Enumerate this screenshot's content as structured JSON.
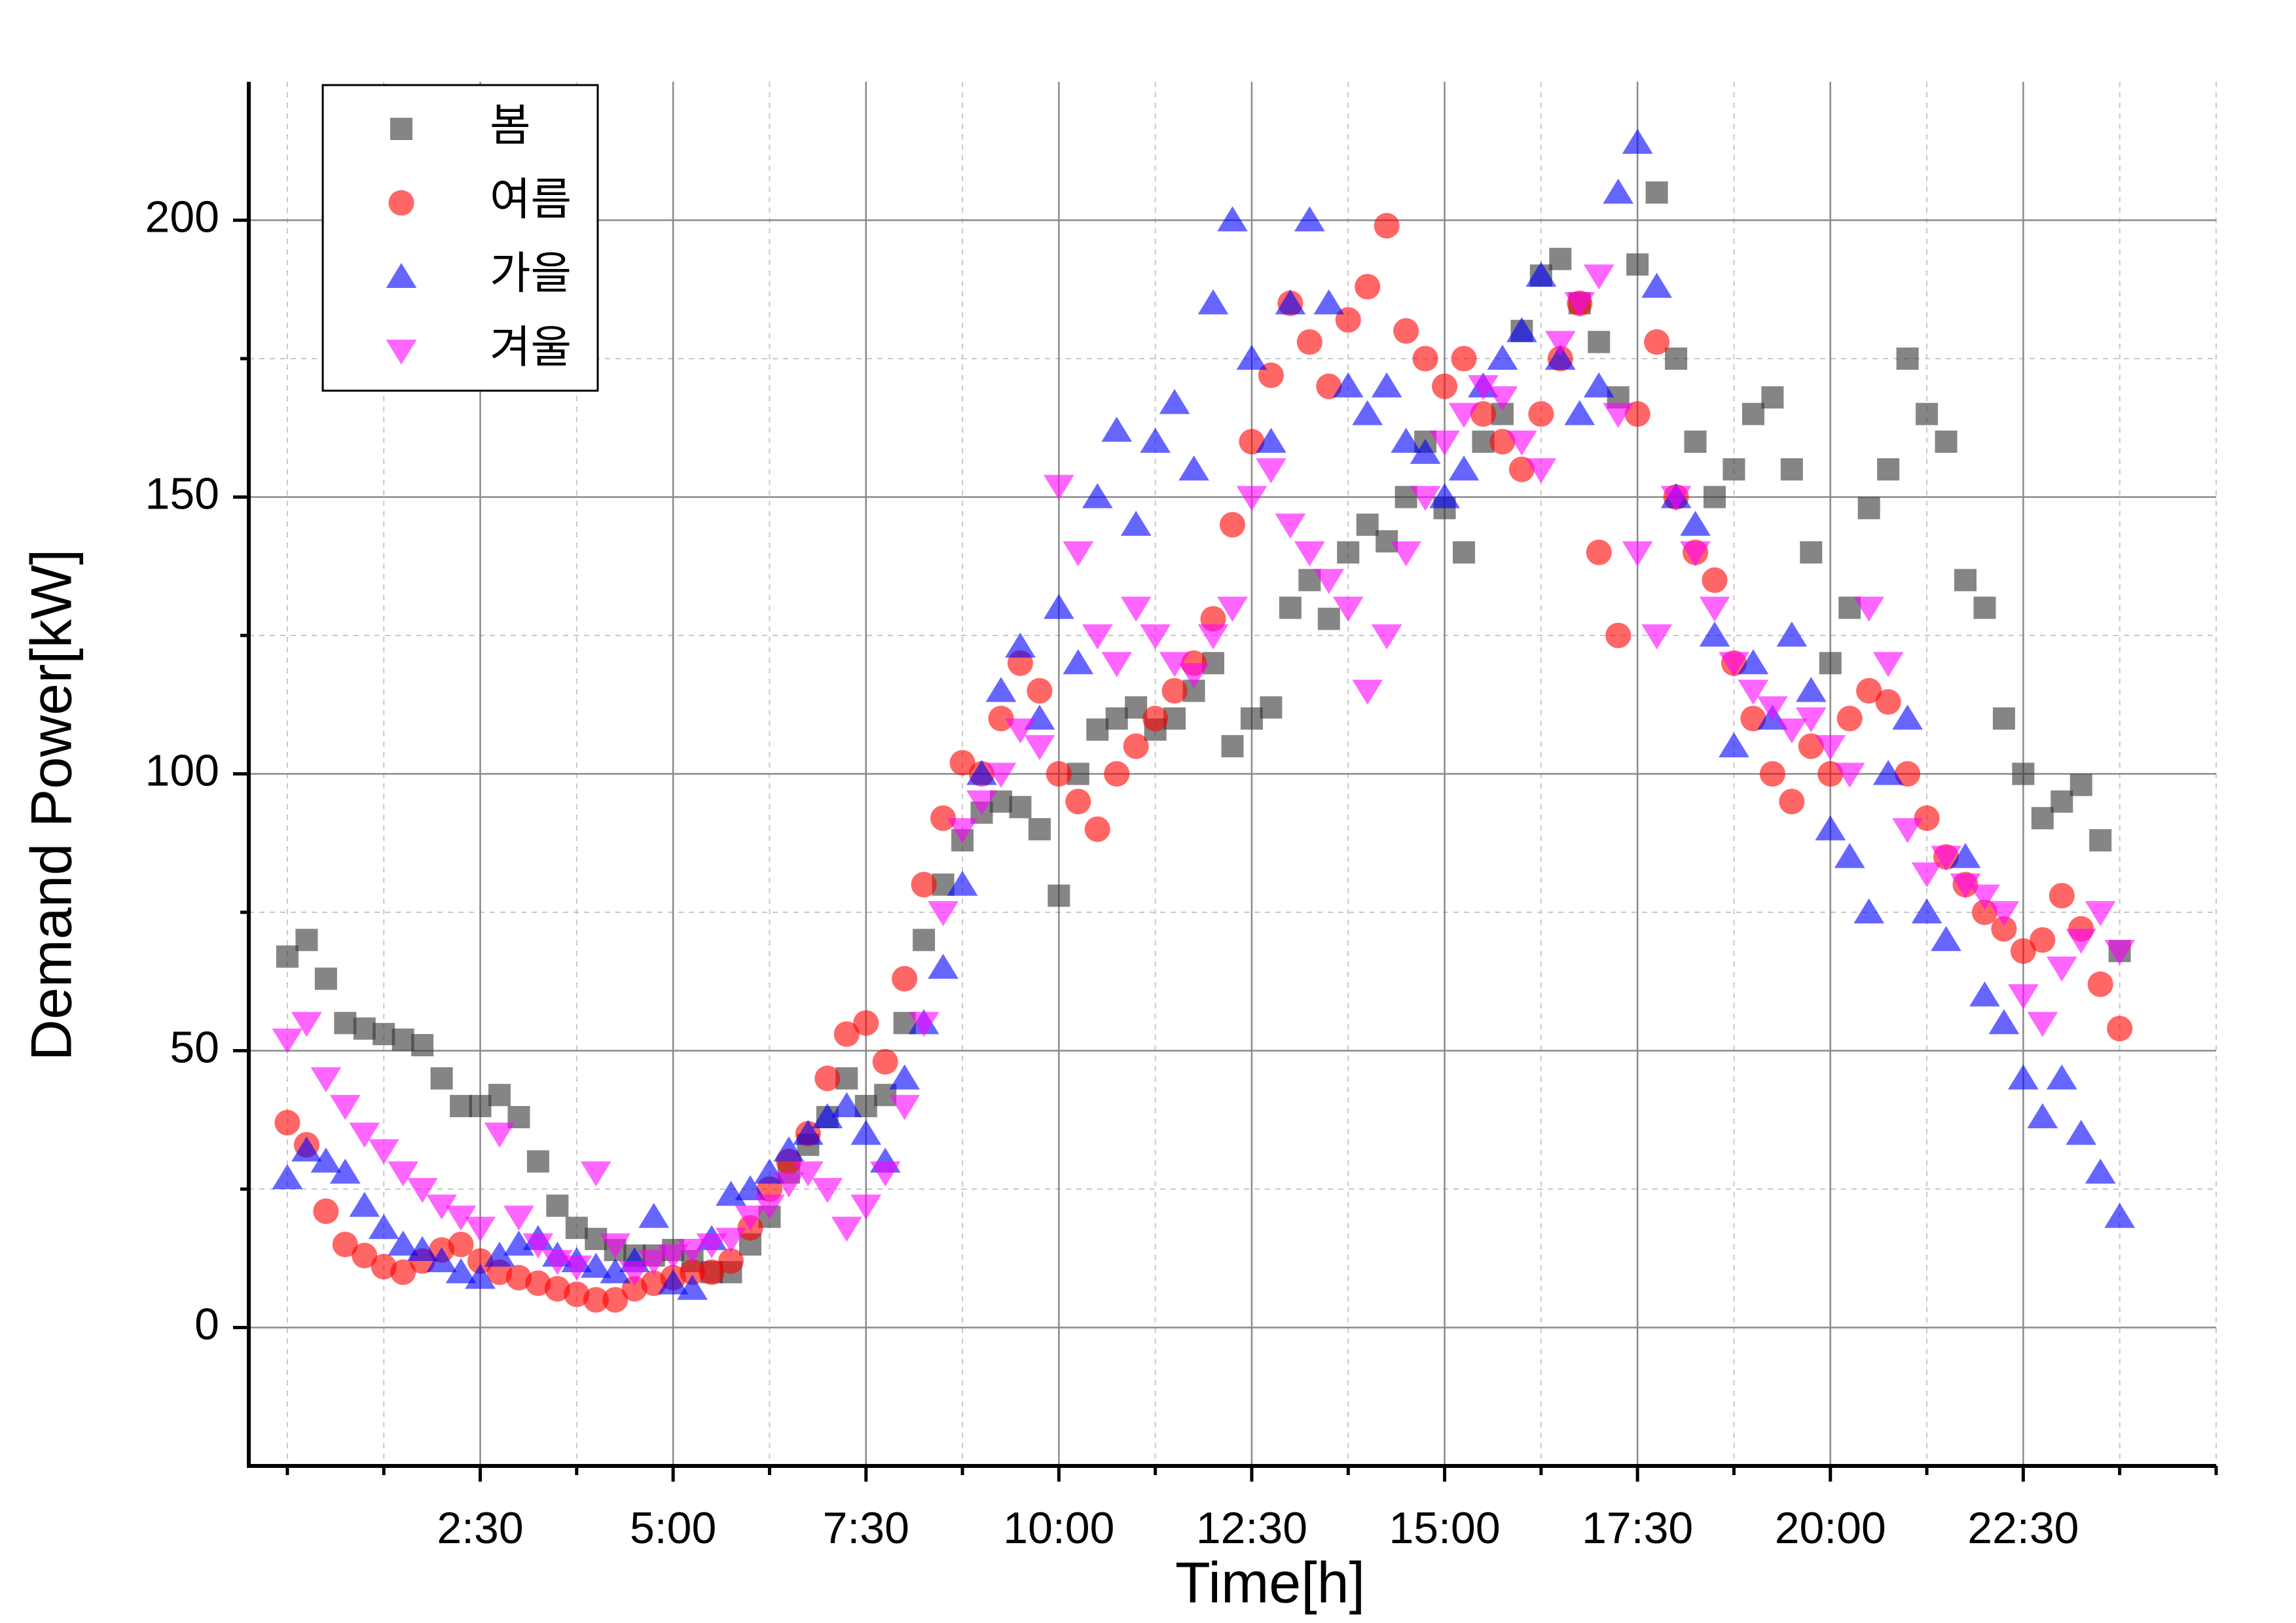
{
  "chart_data": {
    "type": "scatter",
    "xlabel": "Time[h]",
    "ylabel": "Demand Power[kW]",
    "x": [
      0,
      0.25,
      0.5,
      0.75,
      1,
      1.25,
      1.5,
      1.75,
      2,
      2.25,
      2.5,
      2.75,
      3,
      3.25,
      3.5,
      3.75,
      4,
      4.25,
      4.5,
      4.75,
      5,
      5.25,
      5.5,
      5.75,
      6,
      6.25,
      6.5,
      6.75,
      7,
      7.25,
      7.5,
      7.75,
      8,
      8.25,
      8.5,
      8.75,
      9,
      9.25,
      9.5,
      9.75,
      10,
      10.25,
      10.5,
      10.75,
      11,
      11.25,
      11.5,
      11.75,
      12,
      12.25,
      12.5,
      12.75,
      13,
      13.25,
      13.5,
      13.75,
      14,
      14.25,
      14.5,
      14.75,
      15,
      15.25,
      15.5,
      15.75,
      16,
      16.25,
      16.5,
      16.75,
      17,
      17.25,
      17.5,
      17.75,
      18,
      18.25,
      18.5,
      18.75,
      19,
      19.25,
      19.5,
      19.75,
      20,
      20.25,
      20.5,
      20.75,
      21,
      21.25,
      21.5,
      21.75,
      22,
      22.25,
      22.5,
      22.75,
      23,
      23.25,
      23.5,
      23.75
    ],
    "series": [
      {
        "name": "봄",
        "color": "#333333",
        "marker": "square",
        "values": [
          67,
          70,
          63,
          55,
          54,
          53,
          52,
          51,
          45,
          40,
          40,
          42,
          38,
          30,
          22,
          18,
          16,
          14,
          13,
          13,
          14,
          12,
          10,
          10,
          15,
          20,
          28,
          33,
          38,
          45,
          40,
          42,
          55,
          70,
          80,
          88,
          93,
          95,
          94,
          90,
          78,
          100,
          108,
          110,
          112,
          108,
          110,
          115,
          120,
          105,
          110,
          112,
          130,
          135,
          128,
          140,
          145,
          142,
          150,
          160,
          148,
          140,
          160,
          165,
          180,
          190,
          193,
          185,
          178,
          168,
          192,
          205,
          175,
          160,
          150,
          155,
          165,
          168,
          155,
          140,
          120,
          130,
          148,
          155,
          175,
          165,
          160,
          135,
          130,
          110,
          100,
          92,
          95,
          98,
          88,
          68
        ]
      },
      {
        "name": "여름",
        "color": "#ff0000",
        "marker": "circle",
        "values": [
          37,
          33,
          21,
          15,
          13,
          11,
          10,
          12,
          14,
          15,
          12,
          10,
          9,
          8,
          7,
          6,
          5,
          5,
          7,
          8,
          9,
          10,
          10,
          12,
          18,
          25,
          30,
          35,
          45,
          53,
          55,
          48,
          63,
          80,
          92,
          102,
          100,
          110,
          120,
          115,
          100,
          95,
          90,
          100,
          105,
          110,
          115,
          120,
          128,
          145,
          160,
          172,
          185,
          178,
          170,
          182,
          188,
          199,
          180,
          175,
          170,
          175,
          165,
          160,
          155,
          165,
          175,
          185,
          140,
          125,
          165,
          178,
          150,
          140,
          135,
          120,
          110,
          100,
          95,
          105,
          100,
          110,
          115,
          113,
          100,
          92,
          85,
          80,
          75,
          72,
          68,
          70,
          78,
          72,
          62,
          54
        ]
      },
      {
        "name": "가을",
        "color": "#0000ff",
        "marker": "triangle-up",
        "values": [
          27,
          32,
          30,
          28,
          22,
          18,
          15,
          14,
          12,
          10,
          9,
          13,
          15,
          16,
          13,
          12,
          11,
          10,
          12,
          20,
          8,
          7,
          16,
          24,
          25,
          28,
          32,
          35,
          38,
          40,
          35,
          30,
          45,
          55,
          65,
          80,
          100,
          115,
          123,
          110,
          130,
          120,
          150,
          162,
          145,
          160,
          167,
          155,
          185,
          200,
          175,
          160,
          185,
          200,
          185,
          170,
          165,
          170,
          160,
          158,
          150,
          155,
          170,
          175,
          180,
          190,
          175,
          165,
          170,
          205,
          214,
          188,
          150,
          145,
          125,
          105,
          120,
          110,
          125,
          115,
          90,
          85,
          75,
          100,
          110,
          75,
          70,
          85,
          60,
          55,
          45,
          38,
          45,
          35,
          28,
          20
        ]
      },
      {
        "name": "겨울",
        "color": "#ff00ff",
        "marker": "triangle-down",
        "values": [
          52,
          55,
          45,
          40,
          35,
          32,
          28,
          25,
          22,
          20,
          18,
          35,
          20,
          15,
          12,
          11,
          28,
          15,
          10,
          12,
          13,
          14,
          15,
          16,
          20,
          22,
          26,
          28,
          25,
          18,
          22,
          28,
          40,
          55,
          75,
          90,
          95,
          100,
          108,
          105,
          152,
          140,
          125,
          120,
          130,
          125,
          120,
          118,
          125,
          130,
          150,
          155,
          145,
          140,
          135,
          130,
          115,
          125,
          140,
          150,
          160,
          165,
          170,
          168,
          160,
          155,
          178,
          185,
          190,
          165,
          140,
          125,
          150,
          140,
          130,
          120,
          115,
          112,
          108,
          110,
          105,
          100,
          130,
          120,
          90,
          82,
          85,
          80,
          78,
          75,
          60,
          55,
          65,
          70,
          75,
          68
        ]
      }
    ],
    "xlim": [
      -0.5,
      25
    ],
    "xticks": [
      {
        "value": 2.5,
        "label": "2:30"
      },
      {
        "value": 5,
        "label": "5:00"
      },
      {
        "value": 7.5,
        "label": "7:30"
      },
      {
        "value": 10,
        "label": "10:00"
      },
      {
        "value": 12.5,
        "label": "12:30"
      },
      {
        "value": 15,
        "label": "15:00"
      },
      {
        "value": 17.5,
        "label": "17:30"
      },
      {
        "value": 20,
        "label": "20:00"
      },
      {
        "value": 22.5,
        "label": "22:30"
      }
    ],
    "xminorticks": [
      0,
      1.25,
      3.75,
      6.25,
      8.75,
      11.25,
      13.75,
      16.25,
      18.75,
      21.25,
      23.75,
      25
    ],
    "ylim": [
      -25,
      225
    ],
    "yticks": [
      0,
      50,
      100,
      150,
      200
    ],
    "yminorticks": [
      25,
      75,
      125,
      175
    ],
    "grid": true,
    "legend": "upper left"
  }
}
